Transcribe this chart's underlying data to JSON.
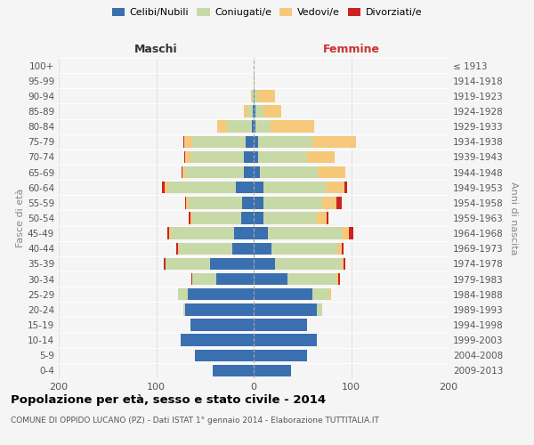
{
  "age_groups": [
    "0-4",
    "5-9",
    "10-14",
    "15-19",
    "20-24",
    "25-29",
    "30-34",
    "35-39",
    "40-44",
    "45-49",
    "50-54",
    "55-59",
    "60-64",
    "65-69",
    "70-74",
    "75-79",
    "80-84",
    "85-89",
    "90-94",
    "95-99",
    "100+"
  ],
  "birth_years": [
    "2009-2013",
    "2004-2008",
    "1999-2003",
    "1994-1998",
    "1989-1993",
    "1984-1988",
    "1979-1983",
    "1974-1978",
    "1969-1973",
    "1964-1968",
    "1959-1963",
    "1954-1958",
    "1949-1953",
    "1944-1948",
    "1939-1943",
    "1934-1938",
    "1929-1933",
    "1924-1928",
    "1919-1923",
    "1914-1918",
    "≤ 1913"
  ],
  "males": {
    "celibi": [
      42,
      60,
      75,
      65,
      70,
      68,
      38,
      45,
      22,
      20,
      13,
      12,
      18,
      10,
      10,
      8,
      2,
      1,
      0,
      0,
      0
    ],
    "coniugati": [
      0,
      0,
      0,
      0,
      2,
      10,
      25,
      45,
      55,
      65,
      50,
      55,
      70,
      60,
      55,
      55,
      25,
      5,
      2,
      0,
      0
    ],
    "vedovi": [
      0,
      0,
      0,
      0,
      0,
      0,
      0,
      0,
      1,
      2,
      2,
      2,
      3,
      3,
      5,
      8,
      10,
      4,
      1,
      0,
      0
    ],
    "divorziati": [
      0,
      0,
      0,
      0,
      0,
      0,
      1,
      2,
      1,
      2,
      2,
      1,
      3,
      1,
      1,
      1,
      0,
      0,
      0,
      0,
      0
    ]
  },
  "females": {
    "nubili": [
      38,
      55,
      65,
      55,
      65,
      60,
      35,
      22,
      18,
      15,
      10,
      10,
      10,
      6,
      5,
      5,
      2,
      2,
      1,
      0,
      0
    ],
    "coniugate": [
      0,
      0,
      0,
      0,
      5,
      18,
      50,
      68,
      68,
      75,
      55,
      60,
      65,
      60,
      50,
      55,
      15,
      8,
      3,
      0,
      0
    ],
    "vedove": [
      0,
      0,
      0,
      0,
      0,
      1,
      2,
      2,
      4,
      8,
      10,
      15,
      18,
      28,
      28,
      45,
      45,
      18,
      18,
      1,
      0
    ],
    "divorziate": [
      0,
      0,
      0,
      0,
      0,
      0,
      2,
      2,
      2,
      4,
      2,
      5,
      3,
      0,
      0,
      0,
      0,
      0,
      0,
      0,
      0
    ]
  },
  "colors": {
    "celibi": "#3a6fb0",
    "coniugati": "#c8d9a8",
    "vedovi": "#f5c87a",
    "divorziati": "#cc2222"
  },
  "title": "Popolazione per età, sesso e stato civile - 2014",
  "subtitle": "COMUNE DI OPPIDO LUCANO (PZ) - Dati ISTAT 1° gennaio 2014 - Elaborazione TUTTITALIA.IT",
  "col_left": "Maschi",
  "col_right": "Femmine",
  "ylabel_left": "Fasce di età",
  "ylabel_right": "Anni di nascita",
  "xlim": 200,
  "xticks": [
    -200,
    -100,
    0,
    100,
    200
  ],
  "xticklabels": [
    "200",
    "100",
    "0",
    "100",
    "200"
  ],
  "bg_color": "#f5f5f5",
  "legend_labels": [
    "Celibi/Nubili",
    "Coniugati/e",
    "Vedovi/e",
    "Divorziati/e"
  ]
}
